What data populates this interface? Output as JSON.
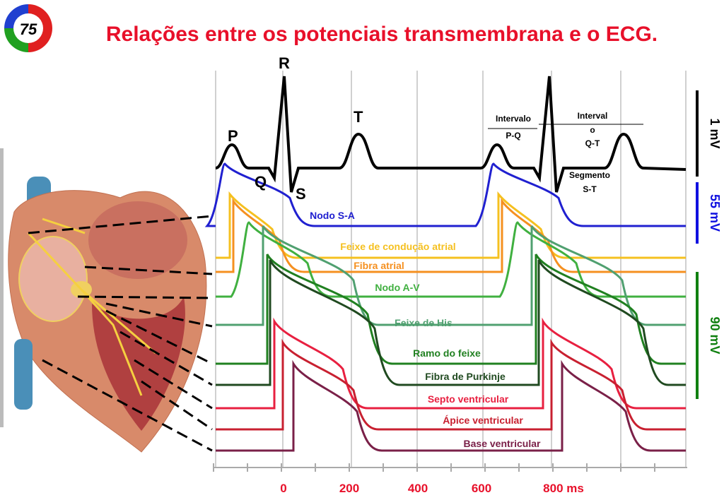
{
  "badge": "75",
  "title": "Relações entre os potenciais transmembrana e o ECG.",
  "ecg": {
    "waves": {
      "P": "P",
      "Q": "Q",
      "R": "R",
      "S": "S",
      "T": "T"
    },
    "pq": {
      "line1": "Intervalo",
      "line2": "P-Q"
    },
    "qt": {
      "line1": "Interval",
      "line2": "o",
      "line3": "Q-T"
    },
    "st": {
      "line1": "Segmento",
      "line2": "S-T"
    }
  },
  "scales": [
    {
      "label": "1 mV",
      "color": "#000000"
    },
    {
      "label": "55 mV",
      "color": "#1010e0"
    },
    {
      "label": "90 mV",
      "color": "#108010"
    }
  ],
  "traces": [
    {
      "label": "Nodo S-A",
      "color": "#2020d0"
    },
    {
      "label": "Feixe de condução atrial",
      "color": "#f5c020"
    },
    {
      "label": "Fibra atrial",
      "color": "#f59020"
    },
    {
      "label": "Nodo A-V",
      "color": "#40b040"
    },
    {
      "label": "Feixe de His",
      "color": "#50a070"
    },
    {
      "label": "Ramo do feixe",
      "color": "#208020"
    },
    {
      "label": "Fibra de Purkinje",
      "color": "#204a20"
    },
    {
      "label": "Septo ventricular",
      "color": "#e82040"
    },
    {
      "label": "Ápice ventricular",
      "color": "#c82030"
    },
    {
      "label": "Base ventricular",
      "color": "#7a2048"
    }
  ],
  "x_axis": {
    "ticks": [
      "0",
      "200",
      "400",
      "600",
      "800 ms"
    ]
  }
}
